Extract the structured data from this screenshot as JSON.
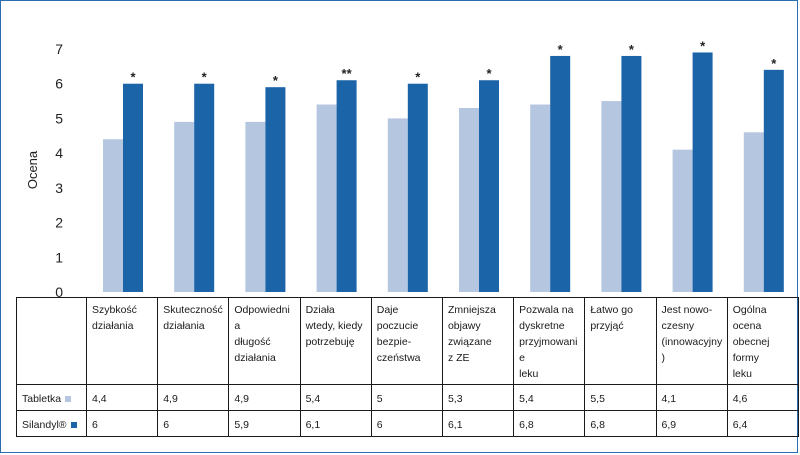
{
  "chart_data": {
    "type": "bar",
    "title": "",
    "ylabel": "Ocena",
    "ylim": [
      0,
      7
    ],
    "yticks": [
      0,
      1,
      2,
      3,
      4,
      5,
      6,
      7
    ],
    "grid": false,
    "categories": [
      "Szybkość\ndziałania",
      "Skuteczność\ndziałania",
      "Odpowiednia\ndługość\ndziałania",
      "Działa\nwtedy, kiedy\npotrzebuję",
      "Daje poczucie\nbezpie-\nczeństwa",
      "Zmniejsza\nobjawy\nzwiązane\nz ZE",
      "Pozwala na\ndyskretne\nprzyjmowanie\nleku",
      "Łatwo go\nprzyjąć",
      "Jest nowo-\nczesny\n(innowacyjny)",
      "Ogólna ocena\nobecnej formy\nleku"
    ],
    "series": [
      {
        "name": "Tabletka",
        "color": "#b4c6e0",
        "values": [
          4.4,
          4.9,
          4.9,
          5.4,
          5,
          5.3,
          5.4,
          5.5,
          4.1,
          4.6
        ],
        "labels": [
          "4,4",
          "4,9",
          "4,9",
          "5,4",
          "5",
          "5,3",
          "5,4",
          "5,5",
          "4,1",
          "4,6"
        ]
      },
      {
        "name": "Silandyl®",
        "color": "#1c64a8",
        "values": [
          6,
          6,
          5.9,
          6.1,
          6,
          6.1,
          6.8,
          6.8,
          6.9,
          6.4
        ],
        "labels": [
          "6",
          "6",
          "5,9",
          "6,1",
          "6",
          "6,1",
          "6,8",
          "6,8",
          "6,9",
          "6,4"
        ]
      }
    ],
    "annotations": [
      "*",
      "*",
      "*",
      "**",
      "*",
      "*",
      "*",
      "*",
      "*",
      "*"
    ]
  }
}
